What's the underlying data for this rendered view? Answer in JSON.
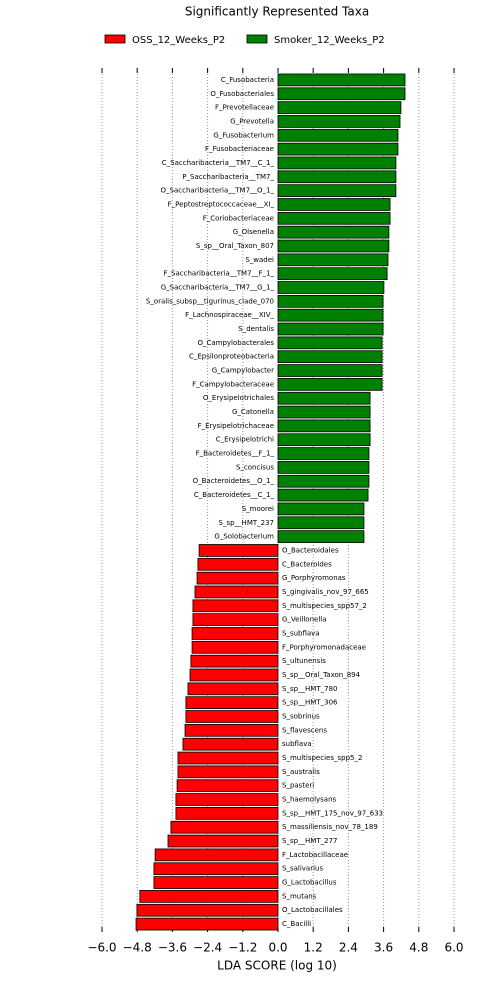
{
  "chart_data": {
    "type": "hbar",
    "title": "Significantly Represented Taxa",
    "xlabel": "LDA SCORE (log 10)",
    "categories": [
      "C_Fusobacteria",
      "O_Fusobacteriales",
      "F_Prevotellaceae",
      "G_Prevotella",
      "G_Fusobacterium",
      "F_Fusobacteriaceae",
      "C_Saccharibacteria__TM7__C_1_",
      "P_Saccharibacteria__TM7_",
      "O_Saccharibacteria__TM7__O_1_",
      "F_Peptostreptococcaceae__XI_",
      "F_Coriobacteriaceae",
      "G_Olsenella",
      "S_sp__Oral_Taxon_807",
      "S_wadei",
      "F_Saccharibacteria__TM7__F_1_",
      "G_Saccharibacteria__TM7__G_1_",
      "S_oralis_subsp__tigurinus_clade_070",
      "F_Lachnospiraceae__XIV_",
      "S_dentalis",
      "O_Campylobacterales",
      "C_Epsilonproteobacteria",
      "G_Campylobacter",
      "F_Campylobacteraceae",
      "O_Erysipelotrichales",
      "G_Catonella",
      "F_Erysipelotrichaceae",
      "C_Erysipelotrichi",
      "F_Bacteroidetes__F_1_",
      "S_concisus",
      "O_Bacteroidetes__O_1_",
      "C_Bacteroidetes__C_1_",
      "S_moorei",
      "S_sp__HMT_237",
      "G_Solobacterium",
      "O_Bacteroidales",
      "C_Bacteroides",
      "G_Porphyromonas",
      "S_gingivalis_nov_97_665",
      "S_multispecies_spp57_2",
      "G_Veillonella",
      "S_subflava",
      "F_Porphyromonadaceae",
      "S_ultunensis",
      "S_sp__Oral_Taxon_894",
      "S_sp__HMT_780",
      "S_sp__HMT_306",
      "S_sobrinus",
      "S_flavescens",
      "subflava",
      "S_multispecies_spp5_2",
      "S_australis",
      "S_pasteri",
      "S_haemolysans",
      "S_sp__HMT_175_nov_97_633",
      "S_massiliensis_nov_78_189",
      "S_sp__HMT_277",
      "F_Lactobacillaceae",
      "S_salivarius",
      "G_Lactobacillus",
      "S_mutans",
      "O_Lactobacillales",
      "C_Bacilli"
    ],
    "series": [
      {
        "name": "OSS_12_Weeks_P2",
        "color": "#ff0000",
        "values": [
          null,
          null,
          null,
          null,
          null,
          null,
          null,
          null,
          null,
          null,
          null,
          null,
          null,
          null,
          null,
          null,
          null,
          null,
          null,
          null,
          null,
          null,
          null,
          null,
          null,
          null,
          null,
          null,
          null,
          null,
          null,
          null,
          null,
          null,
          -2.69,
          -2.73,
          -2.76,
          -2.83,
          -2.9,
          -2.9,
          -2.93,
          -2.93,
          -2.97,
          -3.0,
          -3.07,
          -3.14,
          -3.14,
          -3.17,
          -3.24,
          -3.41,
          -3.41,
          -3.44,
          -3.48,
          -3.48,
          -3.65,
          -3.75,
          -4.19,
          -4.23,
          -4.23,
          -4.71,
          -4.81,
          -4.84
        ]
      },
      {
        "name": "Smoker_12_Weeks_P2",
        "color": "#008000",
        "values": [
          4.33,
          4.33,
          4.19,
          4.16,
          4.09,
          4.09,
          4.02,
          4.02,
          4.02,
          3.82,
          3.82,
          3.78,
          3.78,
          3.75,
          3.72,
          3.61,
          3.58,
          3.58,
          3.58,
          3.55,
          3.55,
          3.55,
          3.55,
          3.14,
          3.14,
          3.14,
          3.14,
          3.1,
          3.1,
          3.1,
          3.07,
          2.93,
          2.93,
          2.93,
          null,
          null,
          null,
          null,
          null,
          null,
          null,
          null,
          null,
          null,
          null,
          null,
          null,
          null,
          null,
          null,
          null,
          null,
          null,
          null,
          null,
          null,
          null,
          null,
          null,
          null,
          null,
          null
        ]
      }
    ],
    "xlim": [
      -6,
      6
    ],
    "xticks": [
      {
        "value": -6,
        "label": "−6.0"
      },
      {
        "value": -4.8,
        "label": "−4.8"
      },
      {
        "value": -3.6,
        "label": "−3.6"
      },
      {
        "value": -2.4,
        "label": "−2.4"
      },
      {
        "value": -1.2,
        "label": "−1.2"
      },
      {
        "value": 0,
        "label": "0.0"
      },
      {
        "value": 1.2,
        "label": "1.2"
      },
      {
        "value": 2.4,
        "label": "2.4"
      },
      {
        "value": 3.6,
        "label": "3.6"
      },
      {
        "value": 4.8,
        "label": "4.8"
      },
      {
        "value": 6,
        "label": "6.0"
      }
    ],
    "grid": true
  }
}
